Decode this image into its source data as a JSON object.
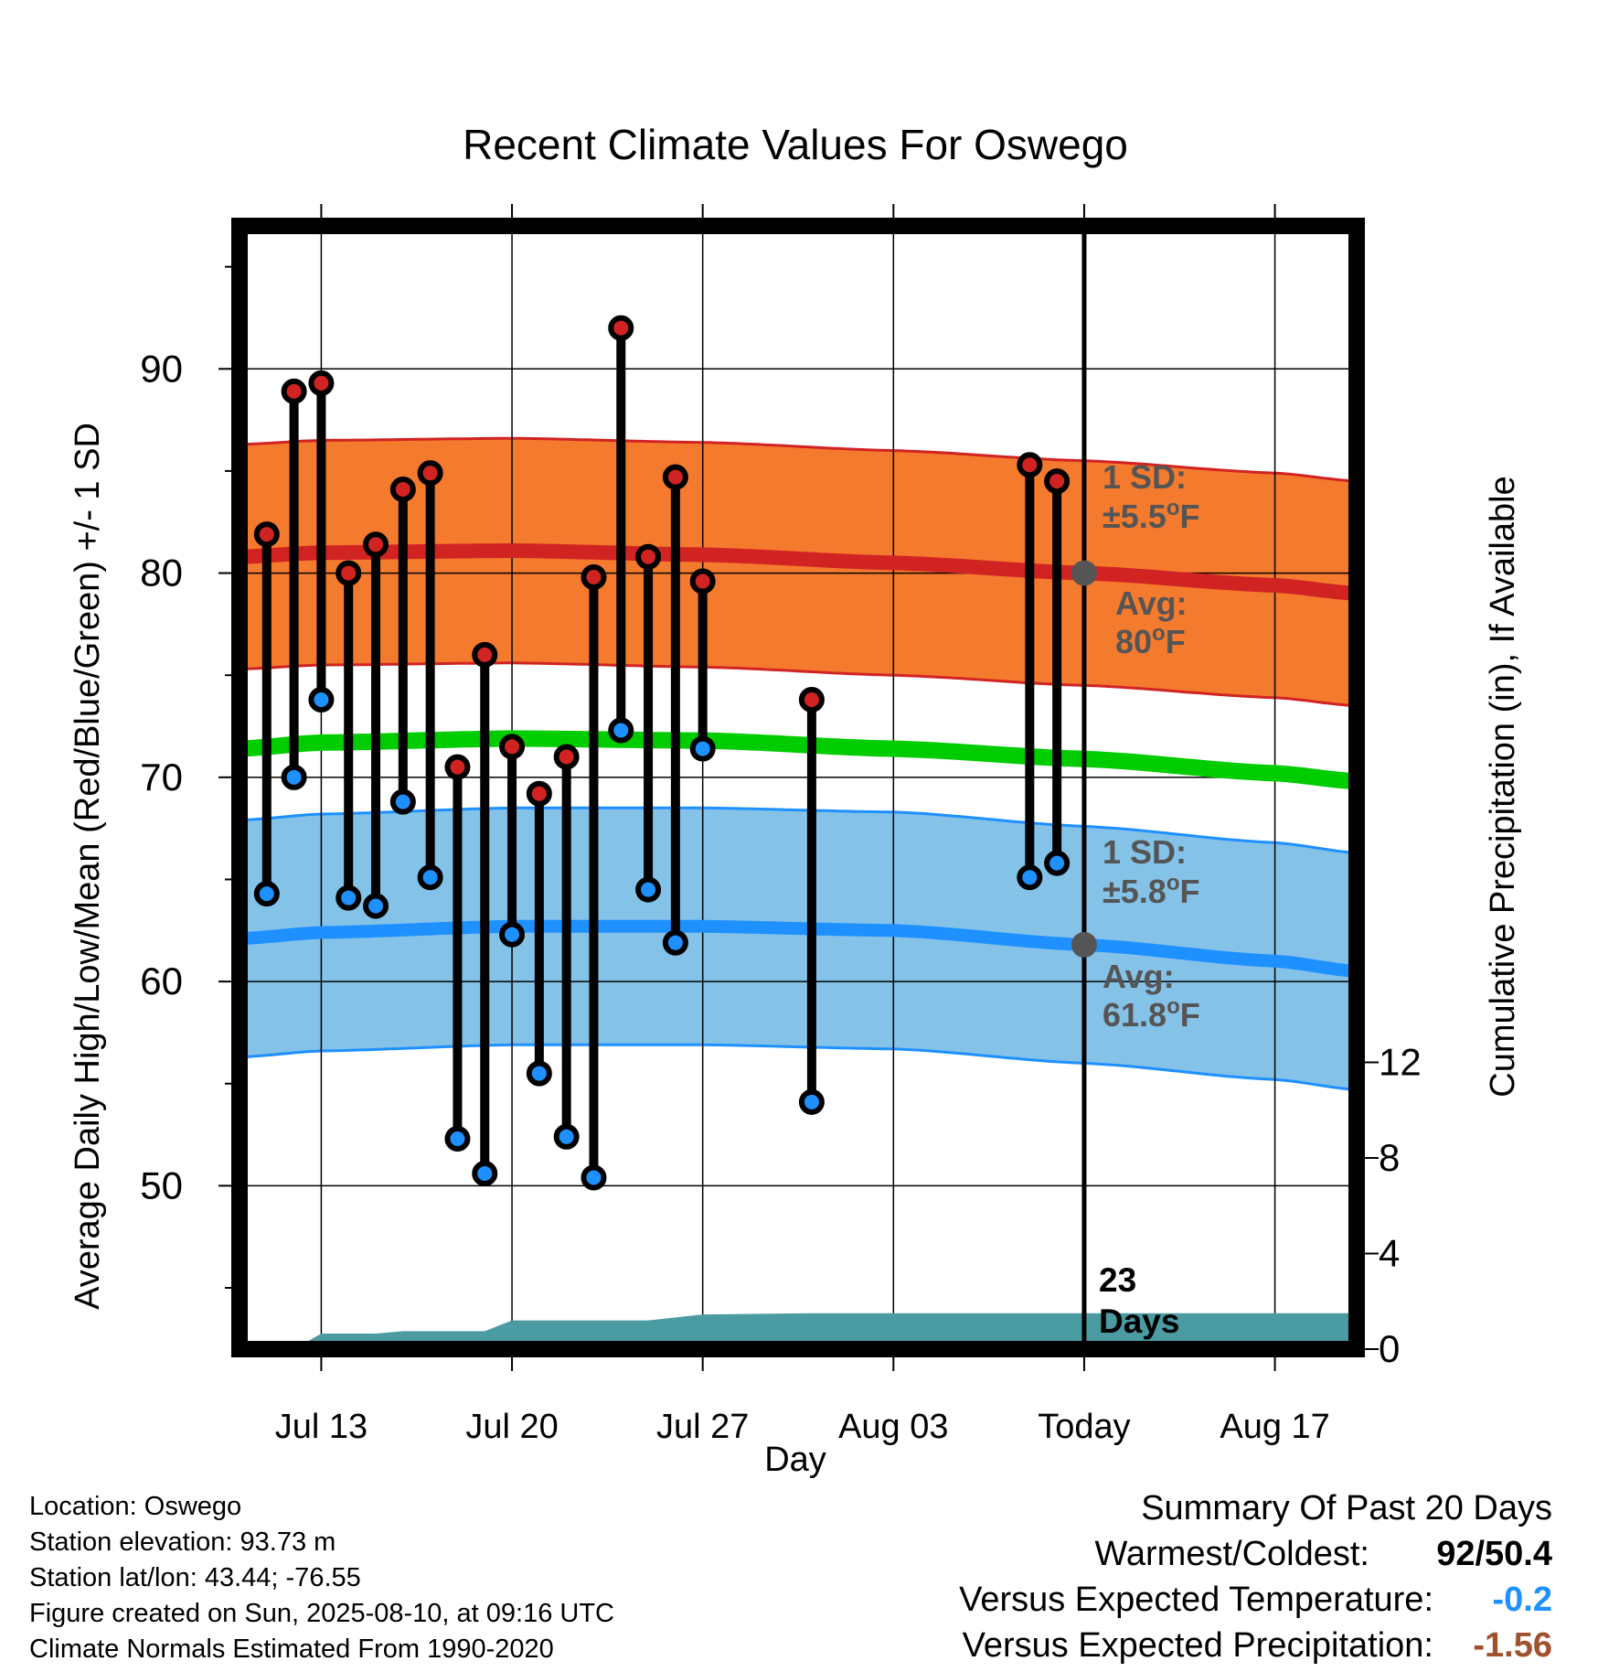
{
  "chart_data": {
    "type": "line",
    "title": "Recent Climate Values For Oswego",
    "xlabel": "Day",
    "ylabel": "Average Daily High/Low/Mean (Red/Blue/Green) +/- 1 SD",
    "y2label": "Cumulative Precipitation (in), If Available",
    "x_tick_labels": [
      "Jul 13",
      "Jul 20",
      "Jul 27",
      "Aug 03",
      "Today",
      "Aug 17"
    ],
    "x_tick_dates": [
      "2025-07-13",
      "2025-07-20",
      "2025-07-27",
      "2025-08-03",
      "2025-08-10",
      "2025-08-17"
    ],
    "x_range": [
      "2025-07-10",
      "2025-08-20"
    ],
    "y_ticks": [
      50,
      60,
      70,
      80,
      90
    ],
    "ylim": [
      42,
      97
    ],
    "y2_ticks": [
      0,
      4,
      8,
      12
    ],
    "y2lim": [
      0,
      47
    ],
    "today": "2025-08-10",
    "daily_observations": [
      {
        "date": "2025-07-11",
        "high": 81.9,
        "low": 64.3
      },
      {
        "date": "2025-07-12",
        "high": 88.9,
        "low": 70.0
      },
      {
        "date": "2025-07-13",
        "high": 89.3,
        "low": 73.8
      },
      {
        "date": "2025-07-14",
        "high": 80.0,
        "low": 64.1
      },
      {
        "date": "2025-07-15",
        "high": 81.4,
        "low": 63.7
      },
      {
        "date": "2025-07-16",
        "high": 84.1,
        "low": 68.8
      },
      {
        "date": "2025-07-17",
        "high": 84.9,
        "low": 65.1
      },
      {
        "date": "2025-07-18",
        "high": 70.5,
        "low": 52.3
      },
      {
        "date": "2025-07-19",
        "high": 76.0,
        "low": 50.6
      },
      {
        "date": "2025-07-20",
        "high": 71.5,
        "low": 62.3
      },
      {
        "date": "2025-07-21",
        "high": 69.2,
        "low": 55.5
      },
      {
        "date": "2025-07-22",
        "high": 71.0,
        "low": 52.4
      },
      {
        "date": "2025-07-23",
        "high": 79.8,
        "low": 50.4
      },
      {
        "date": "2025-07-24",
        "high": 92.0,
        "low": 72.3
      },
      {
        "date": "2025-07-25",
        "high": 80.8,
        "low": 64.5
      },
      {
        "date": "2025-07-26",
        "high": 84.7,
        "low": 61.9
      },
      {
        "date": "2025-07-27",
        "high": 79.6,
        "low": 71.4
      },
      {
        "date": "2025-07-31",
        "high": 73.8,
        "low": 54.1
      },
      {
        "date": "2025-08-08",
        "high": 85.3,
        "low": 65.1
      },
      {
        "date": "2025-08-09",
        "high": 84.5,
        "low": 65.8
      }
    ],
    "normals": {
      "dates": [
        "2025-07-10",
        "2025-07-13",
        "2025-07-20",
        "2025-07-27",
        "2025-08-03",
        "2025-08-10",
        "2025-08-17",
        "2025-08-20"
      ],
      "high_mean": [
        80.8,
        81.0,
        81.1,
        80.9,
        80.5,
        80.0,
        79.4,
        79.0
      ],
      "high_sd": 5.5,
      "mean": [
        71.4,
        71.7,
        71.9,
        71.8,
        71.4,
        70.9,
        70.2,
        69.8
      ],
      "low_mean": [
        62.1,
        62.4,
        62.7,
        62.7,
        62.5,
        61.8,
        61.0,
        60.5
      ],
      "low_sd": 5.8
    },
    "cumulative_precipitation": {
      "dates": [
        "2025-07-10",
        "2025-07-12",
        "2025-07-13",
        "2025-07-15",
        "2025-07-16",
        "2025-07-19",
        "2025-07-20",
        "2025-07-25",
        "2025-07-27",
        "2025-07-31",
        "2025-08-10",
        "2025-08-20"
      ],
      "values": [
        0,
        0,
        0.65,
        0.65,
        0.75,
        0.75,
        1.2,
        1.2,
        1.45,
        1.5,
        1.5,
        1.5
      ]
    },
    "annotations": {
      "high_sd_line1": "1 SD:",
      "high_sd_line2": "±5.5°F",
      "high_avg_line1": "Avg:",
      "high_avg_line2": "80°F",
      "low_sd_line1": "1 SD:",
      "low_sd_line2": "±5.8°F",
      "low_avg_line1": "Avg:",
      "low_avg_line2": "61.8°F",
      "days_number": "23",
      "days_word": "Days"
    },
    "colors": {
      "high": "#d22323",
      "high_band": "#f47a2e",
      "low": "#1e90ff",
      "low_band": "#84c2e8",
      "mean": "#00cc00",
      "precip": "#4a9ba2",
      "annotation": "#555555"
    }
  },
  "station_info": [
    "Location: Oswego",
    "Station elevation: 93.73 m",
    "Station lat/lon: 43.44; -76.55",
    "Figure created on Sun, 2025-08-10, at 09:16 UTC",
    "Climate Normals Estimated From 1990-2020"
  ],
  "summary": {
    "heading": "Summary Of Past 20 Days",
    "warm_cold_label": "Warmest/Coldest:",
    "warm_cold_value": "92/50.4",
    "temp_label": "Versus Expected Temperature:",
    "temp_value": "-0.2",
    "temp_color": "#1e90ff",
    "precip_label": "Versus Expected Precipitation:",
    "precip_value": "-1.56",
    "precip_color": "#a0522d"
  }
}
